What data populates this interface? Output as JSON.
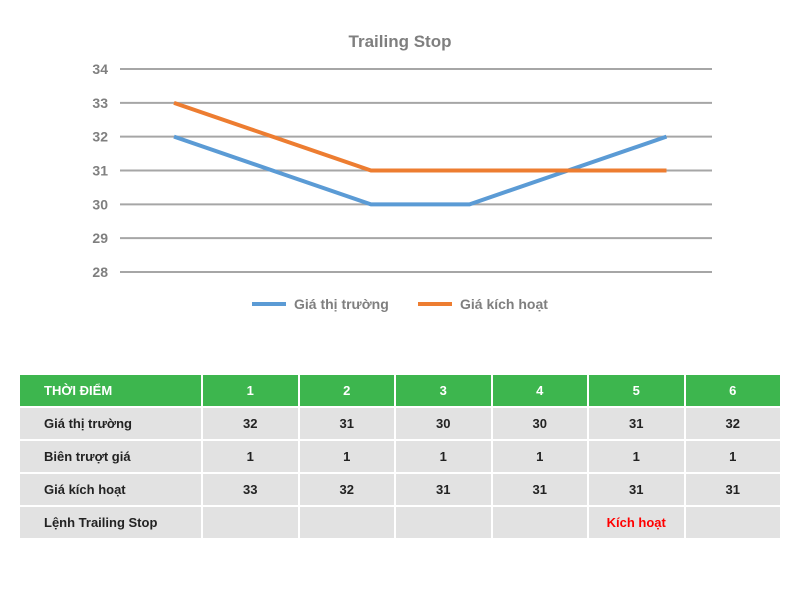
{
  "chart_data": {
    "type": "line",
    "title": "Trailing Stop",
    "x": [
      1,
      2,
      3,
      4,
      5,
      6
    ],
    "ylim": [
      28,
      34
    ],
    "yticks": [
      34,
      33,
      32,
      31,
      30,
      29,
      28
    ],
    "grid": true,
    "legend_position": "bottom",
    "series": [
      {
        "name": "Giá thị trường",
        "color": "#5b9bd5",
        "values": [
          32,
          31,
          30,
          30,
          31,
          32
        ]
      },
      {
        "name": "Giá kích hoạt",
        "color": "#ed7d31",
        "values": [
          33,
          32,
          31,
          31,
          31,
          31
        ]
      }
    ]
  },
  "table": {
    "header": [
      "THỜI ĐIỂM",
      "1",
      "2",
      "3",
      "4",
      "5",
      "6"
    ],
    "rows": [
      {
        "label": "Giá thị trường",
        "cells": [
          "32",
          "31",
          "30",
          "30",
          "31",
          "32"
        ]
      },
      {
        "label": "Biên trượt giá",
        "cells": [
          "1",
          "1",
          "1",
          "1",
          "1",
          "1"
        ]
      },
      {
        "label": "Giá kích hoạt",
        "cells": [
          "33",
          "32",
          "31",
          "31",
          "31",
          "31"
        ]
      },
      {
        "label": "Lệnh Trailing Stop",
        "cells": [
          "",
          "",
          "",
          "",
          "Kích hoạt",
          ""
        ]
      }
    ],
    "header_color": "#3db64e",
    "trigger_color": "#ff0000"
  }
}
